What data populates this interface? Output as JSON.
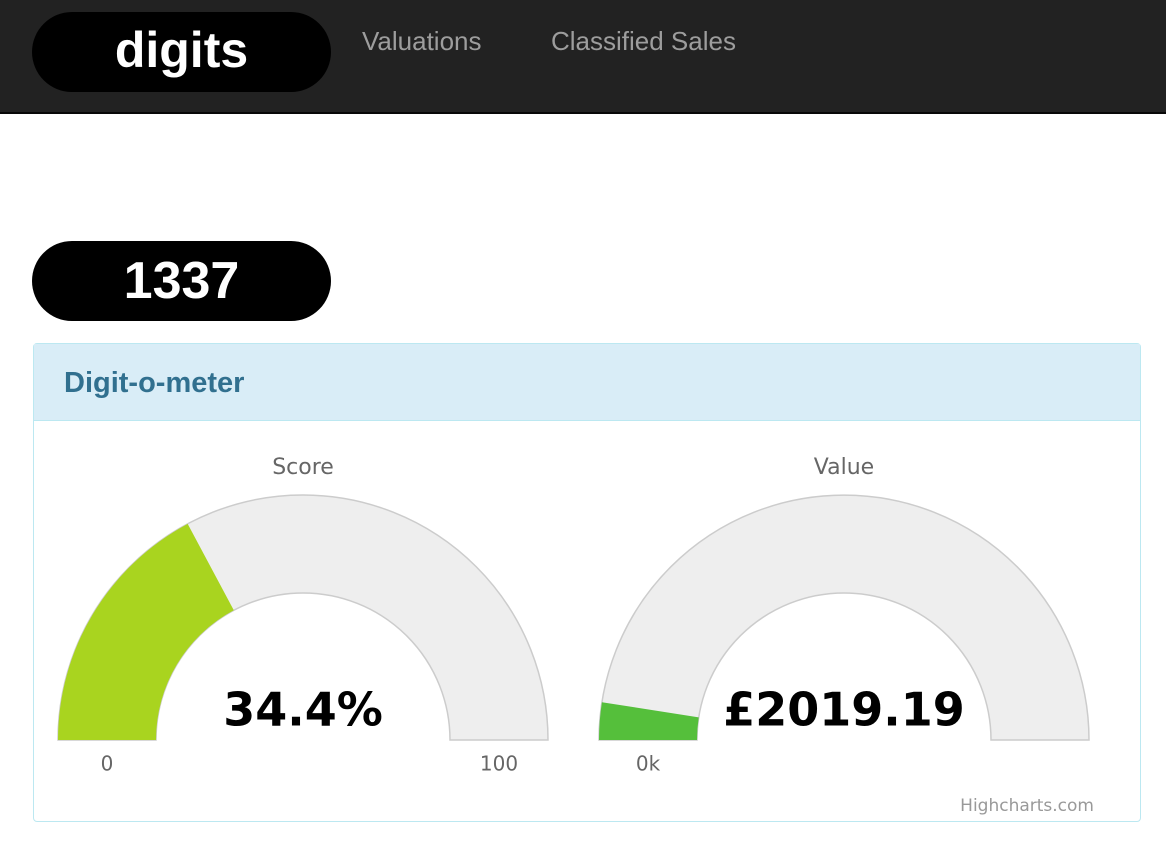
{
  "nav": {
    "logo": "digits",
    "links": [
      "Valuations",
      "Classified Sales"
    ]
  },
  "badge": "1337",
  "panel": {
    "title": "Digit-o-meter",
    "credits": "Highcharts.com"
  },
  "chart_data": [
    {
      "type": "gauge",
      "title": "Score",
      "values": [
        34.4
      ],
      "value_labels": [
        "34.4%"
      ],
      "ylim": [
        0,
        100
      ],
      "yticks": [
        0,
        100
      ],
      "color": "#a9d41f"
    },
    {
      "type": "gauge",
      "title": "Value",
      "values": [
        2019.19
      ],
      "value_labels": [
        "£2019.19"
      ],
      "ylim": [
        0,
        41000
      ],
      "yticks": [
        {
          "value": 0,
          "label": "0k"
        }
      ],
      "color": "#55bf3b"
    }
  ]
}
